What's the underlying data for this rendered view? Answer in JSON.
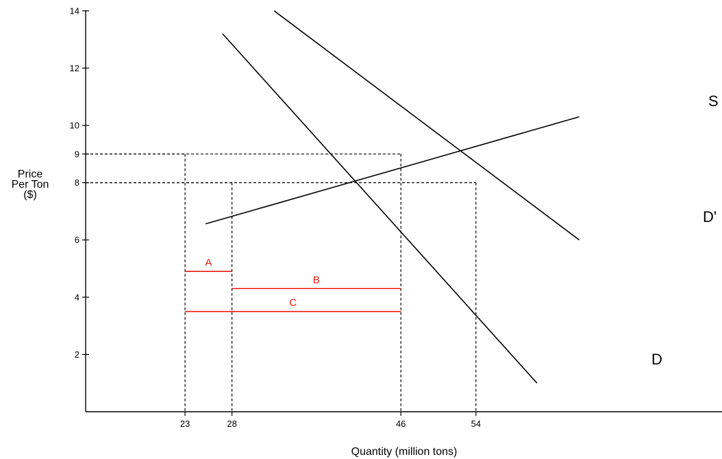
{
  "chart_data": {
    "type": "line",
    "xlabel": "Quantity (million tons)",
    "ylabel": [
      "Price",
      "Per Ton",
      "($)"
    ],
    "y_ticks": [
      2,
      4,
      6,
      8,
      9,
      10,
      12,
      14
    ],
    "x_ticks": [
      23,
      28,
      46,
      54
    ],
    "grid": false,
    "series": [
      {
        "name": "S",
        "x": [
          25.2,
          65
        ],
        "y": [
          6.56,
          10.3
        ],
        "color": "#000000"
      },
      {
        "name": "D",
        "x": [
          27,
          60.5
        ],
        "y": [
          13.2,
          1.0
        ],
        "color": "#000000"
      },
      {
        "name": "D'",
        "x": [
          32.5,
          65
        ],
        "y": [
          14.0,
          6.0
        ],
        "color": "#000000"
      }
    ],
    "reference_points": [
      {
        "x": 23,
        "y": 9
      },
      {
        "x": 28,
        "y": 8
      },
      {
        "x": 46,
        "y": 9
      },
      {
        "x": 54,
        "y": 8
      }
    ],
    "annotations": [
      {
        "label": "A",
        "x_start": 23,
        "x_end": 28,
        "y": 4.9,
        "color": "#e8190c"
      },
      {
        "label": "B",
        "x_start": 28,
        "x_end": 46,
        "y": 4.3,
        "color": "#e8190c"
      },
      {
        "label": "C",
        "x_start": 23,
        "x_end": 46,
        "y": 3.5,
        "color": "#e8190c"
      }
    ]
  }
}
